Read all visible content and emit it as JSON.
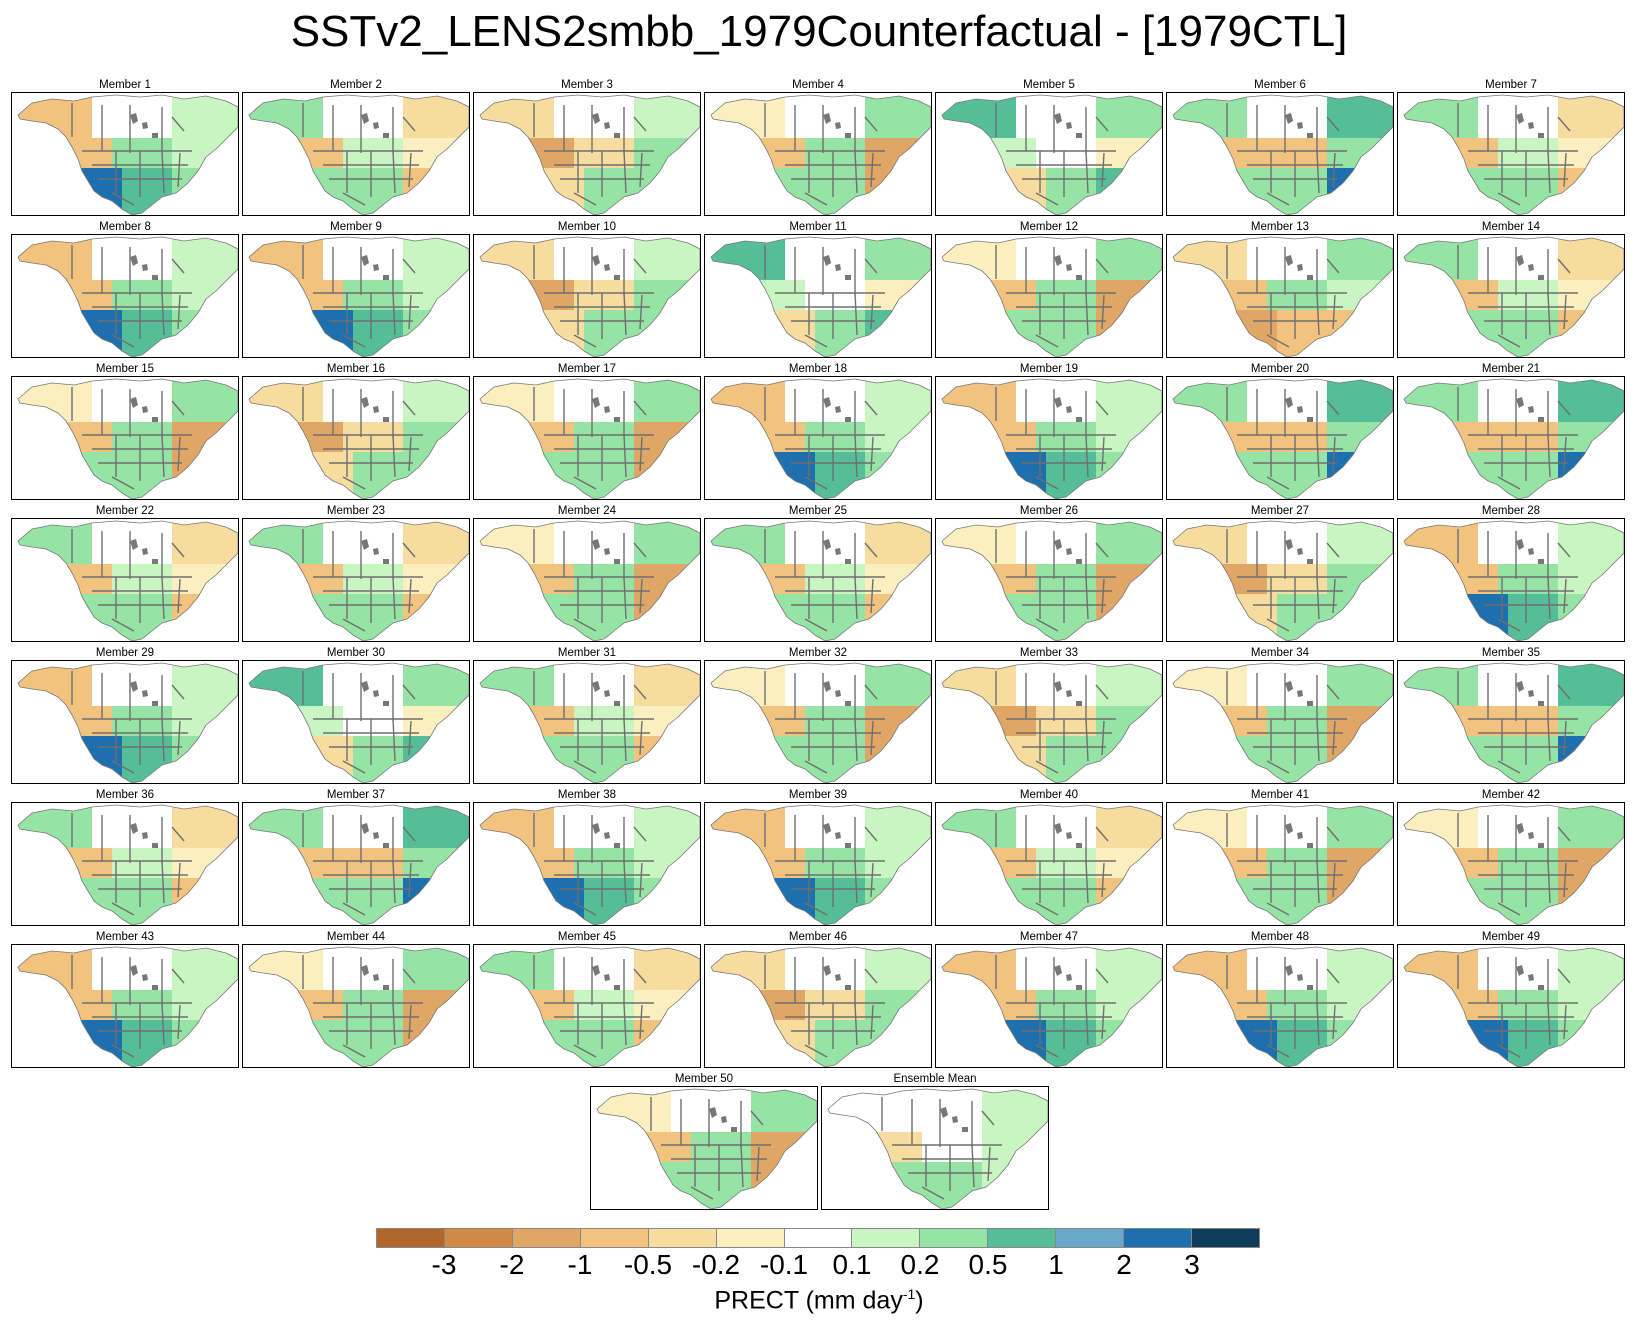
{
  "title": "SSTv2_LENS2smbb_1979Counterfactual - [1979CTL]",
  "panels": [
    {
      "label": "Member 1",
      "pattern": "wet-sw"
    },
    {
      "label": "Member 2",
      "pattern": "mixed"
    },
    {
      "label": "Member 3",
      "pattern": "dry-west"
    },
    {
      "label": "Member 4",
      "pattern": "dry-se"
    },
    {
      "label": "Member 5",
      "pattern": "wet-north"
    },
    {
      "label": "Member 6",
      "pattern": "wet-gulf"
    },
    {
      "label": "Member 7",
      "pattern": "mixed"
    },
    {
      "label": "Member 8",
      "pattern": "wet-sw"
    },
    {
      "label": "Member 9",
      "pattern": "wet-sw"
    },
    {
      "label": "Member 10",
      "pattern": "dry-west"
    },
    {
      "label": "Member 11",
      "pattern": "wet-north"
    },
    {
      "label": "Member 12",
      "pattern": "dry-se"
    },
    {
      "label": "Member 13",
      "pattern": "dry-south"
    },
    {
      "label": "Member 14",
      "pattern": "mixed"
    },
    {
      "label": "Member 15",
      "pattern": "dry-se"
    },
    {
      "label": "Member 16",
      "pattern": "dry-west"
    },
    {
      "label": "Member 17",
      "pattern": "dry-se"
    },
    {
      "label": "Member 18",
      "pattern": "wet-sw"
    },
    {
      "label": "Member 19",
      "pattern": "wet-sw"
    },
    {
      "label": "Member 20",
      "pattern": "wet-gulf"
    },
    {
      "label": "Member 21",
      "pattern": "wet-gulf"
    },
    {
      "label": "Member 22",
      "pattern": "mixed"
    },
    {
      "label": "Member 23",
      "pattern": "mixed"
    },
    {
      "label": "Member 24",
      "pattern": "dry-se"
    },
    {
      "label": "Member 25",
      "pattern": "mixed"
    },
    {
      "label": "Member 26",
      "pattern": "dry-se"
    },
    {
      "label": "Member 27",
      "pattern": "dry-west"
    },
    {
      "label": "Member 28",
      "pattern": "wet-sw"
    },
    {
      "label": "Member 29",
      "pattern": "wet-sw"
    },
    {
      "label": "Member 30",
      "pattern": "wet-north"
    },
    {
      "label": "Member 31",
      "pattern": "mixed"
    },
    {
      "label": "Member 32",
      "pattern": "dry-se"
    },
    {
      "label": "Member 33",
      "pattern": "dry-west"
    },
    {
      "label": "Member 34",
      "pattern": "dry-se"
    },
    {
      "label": "Member 35",
      "pattern": "wet-gulf"
    },
    {
      "label": "Member 36",
      "pattern": "mixed"
    },
    {
      "label": "Member 37",
      "pattern": "wet-gulf"
    },
    {
      "label": "Member 38",
      "pattern": "wet-sw"
    },
    {
      "label": "Member 39",
      "pattern": "wet-sw"
    },
    {
      "label": "Member 40",
      "pattern": "mixed"
    },
    {
      "label": "Member 41",
      "pattern": "dry-se"
    },
    {
      "label": "Member 42",
      "pattern": "dry-se"
    },
    {
      "label": "Member 43",
      "pattern": "wet-sw"
    },
    {
      "label": "Member 44",
      "pattern": "dry-se"
    },
    {
      "label": "Member 45",
      "pattern": "mixed"
    },
    {
      "label": "Member 46",
      "pattern": "dry-west"
    },
    {
      "label": "Member 47",
      "pattern": "wet-sw"
    },
    {
      "label": "Member 48",
      "pattern": "wet-sw"
    },
    {
      "label": "Member 49",
      "pattern": "wet-sw"
    },
    {
      "label": "Member 50",
      "pattern": "dry-se"
    },
    {
      "label": "Ensemble Mean",
      "pattern": "mean"
    }
  ],
  "colorbar": {
    "colors": [
      "#b2672a",
      "#cf8a45",
      "#e0a666",
      "#f2c37f",
      "#f7dc9f",
      "#fcefbf",
      "#ffffff",
      "#c9f5c3",
      "#96e3a6",
      "#55be98",
      "#6aa8c9",
      "#1e6fae",
      "#0e3d5c"
    ],
    "ticks": [
      "-3",
      "-2",
      "-1",
      "-0.5",
      "-0.2",
      "-0.1",
      "0.1",
      "0.2",
      "0.5",
      "1",
      "2",
      "3"
    ],
    "label_main": "PRECT (mm day",
    "label_sup": "-1",
    "label_end": ")"
  }
}
